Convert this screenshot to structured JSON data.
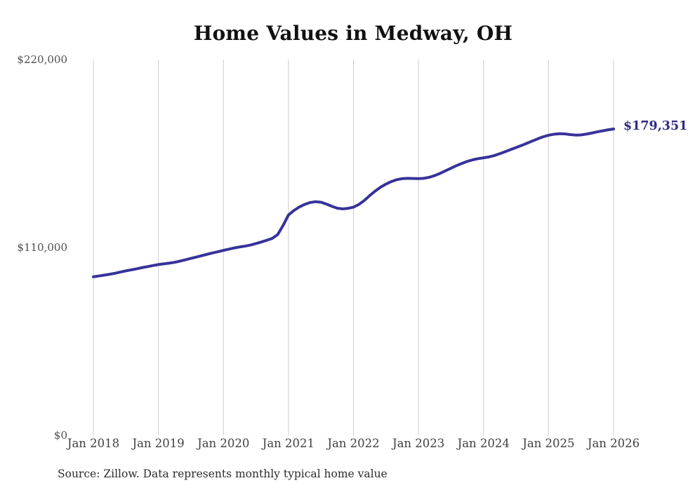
{
  "chart": {
    "title": "Home Values in Medway, OH",
    "source_note": "Source: Zillow. Data represents monthly typical home value",
    "end_label": "$179,351"
  },
  "chart_data": {
    "type": "line",
    "title": "Home Values in Medway, OH",
    "xlabel": "",
    "ylabel": "",
    "ylim": [
      0,
      220000
    ],
    "grid": "vertical-only",
    "legend_position": "none",
    "line_color": "#37329a",
    "grid_color": "#cccccc",
    "label_color": "#2e2a87",
    "latest_value": 179351,
    "end_label": "$179,351",
    "y_tick_labels": [
      "$220,000",
      "$110,000",
      "$0"
    ],
    "y_tick_values": [
      220000,
      110000,
      0
    ],
    "x_tick_labels": [
      "Jan 2018",
      "Jan 2019",
      "Jan 2020",
      "Jan 2021",
      "Jan 2022",
      "Jan 2023",
      "Jan 2024",
      "Jan 2025",
      "Jan 2026"
    ],
    "x_tick_indices": [
      0,
      12,
      24,
      36,
      48,
      60,
      72,
      84,
      96
    ],
    "x_start": "2018-01",
    "x_interval": "monthly",
    "x": [
      "2018-01",
      "2018-02",
      "2018-03",
      "2018-04",
      "2018-05",
      "2018-06",
      "2018-07",
      "2018-08",
      "2018-09",
      "2018-10",
      "2018-11",
      "2018-12",
      "2019-01",
      "2019-02",
      "2019-03",
      "2019-04",
      "2019-05",
      "2019-06",
      "2019-07",
      "2019-08",
      "2019-09",
      "2019-10",
      "2019-11",
      "2019-12",
      "2020-01",
      "2020-02",
      "2020-03",
      "2020-04",
      "2020-05",
      "2020-06",
      "2020-07",
      "2020-08",
      "2020-09",
      "2020-10",
      "2020-11",
      "2020-12",
      "2021-01",
      "2021-02",
      "2021-03",
      "2021-04",
      "2021-05",
      "2021-06",
      "2021-07",
      "2021-08",
      "2021-09",
      "2021-10",
      "2021-11",
      "2021-12",
      "2022-01",
      "2022-02",
      "2022-03",
      "2022-04",
      "2022-05",
      "2022-06",
      "2022-07",
      "2022-08",
      "2022-09",
      "2022-10",
      "2022-11",
      "2022-12",
      "2023-01",
      "2023-02",
      "2023-03",
      "2023-04",
      "2023-05",
      "2023-06",
      "2023-07",
      "2023-08",
      "2023-09",
      "2023-10",
      "2023-11",
      "2023-12",
      "2024-01",
      "2024-02",
      "2024-03",
      "2024-04",
      "2024-05",
      "2024-06",
      "2024-07",
      "2024-08",
      "2024-09",
      "2024-10",
      "2024-11",
      "2024-12",
      "2025-01",
      "2025-02",
      "2025-03",
      "2025-04",
      "2025-05",
      "2025-06",
      "2025-07",
      "2025-08",
      "2025-09",
      "2025-10",
      "2025-11",
      "2025-12",
      "2026-01"
    ],
    "values": [
      92800,
      93300,
      93800,
      94300,
      94900,
      95600,
      96300,
      96900,
      97500,
      98200,
      98800,
      99400,
      100000,
      100400,
      100800,
      101300,
      102000,
      102800,
      103600,
      104400,
      105200,
      106000,
      106800,
      107500,
      108300,
      109000,
      109700,
      110300,
      110800,
      111400,
      112300,
      113200,
      114200,
      115300,
      117500,
      122800,
      129000,
      131600,
      133700,
      135200,
      136300,
      136800,
      136500,
      135400,
      134100,
      133000,
      132600,
      132900,
      133600,
      135200,
      137500,
      140400,
      143000,
      145300,
      147100,
      148600,
      149700,
      150300,
      150500,
      150400,
      150300,
      150500,
      151100,
      152100,
      153400,
      154900,
      156400,
      157900,
      159200,
      160400,
      161300,
      162000,
      162500,
      163000,
      163800,
      164900,
      166100,
      167300,
      168500,
      169700,
      171000,
      172300,
      173600,
      174800,
      175700,
      176300,
      176600,
      176500,
      176100,
      175800,
      175900,
      176400,
      177000,
      177700,
      178300,
      178900,
      179351
    ]
  }
}
